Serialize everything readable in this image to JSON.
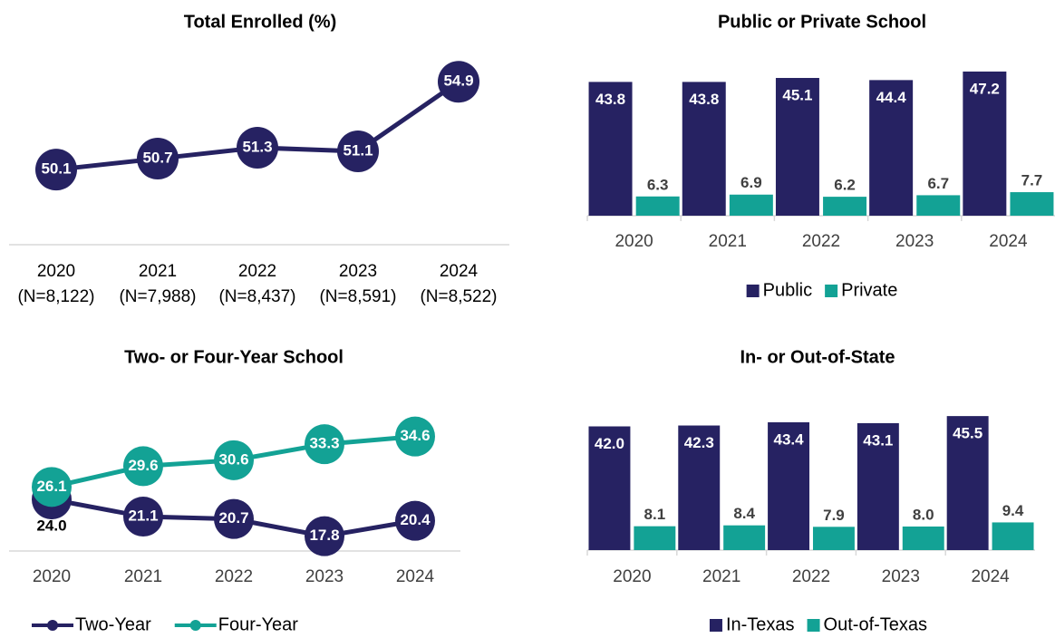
{
  "chart_data": [
    {
      "type": "line",
      "title": "Total Enrolled (%)",
      "categories": [
        "2020",
        "2021",
        "2022",
        "2023",
        "2024"
      ],
      "category_notes": [
        "(N=8,122)",
        "(N=7,988)",
        "(N=8,437)",
        "(N=8,591)",
        "(N=8,522)"
      ],
      "values": [
        50.1,
        50.7,
        51.3,
        51.1,
        54.9
      ],
      "color": "#262262",
      "ylim": [
        46,
        56
      ]
    },
    {
      "type": "bar",
      "title": "Public or Private School",
      "categories": [
        "2020",
        "2021",
        "2022",
        "2023",
        "2024"
      ],
      "series": [
        {
          "name": "Public",
          "color": "#262262",
          "values": [
            43.8,
            43.8,
            45.1,
            44.4,
            47.2
          ]
        },
        {
          "name": "Private",
          "color": "#13a295",
          "values": [
            6.3,
            6.9,
            6.2,
            6.7,
            7.7
          ]
        }
      ],
      "ylim": [
        0,
        50
      ],
      "legend": "bottom"
    },
    {
      "type": "line",
      "title": "Two- or Four-Year School",
      "categories": [
        "2020",
        "2021",
        "2022",
        "2023",
        "2024"
      ],
      "series": [
        {
          "name": "Two-Year",
          "color": "#262262",
          "values": [
            24.0,
            21.1,
            20.7,
            17.8,
            20.4
          ],
          "value_labels": [
            "24.0",
            "21.1",
            "20.7",
            "17.8",
            "20.4"
          ]
        },
        {
          "name": "Four-Year",
          "color": "#13a295",
          "values": [
            26.1,
            29.6,
            30.6,
            33.3,
            34.6
          ]
        }
      ],
      "ylim": [
        15,
        36
      ],
      "legend": "bottom"
    },
    {
      "type": "bar",
      "title": "In- or Out-of-State",
      "categories": [
        "2020",
        "2021",
        "2022",
        "2023",
        "2024"
      ],
      "series": [
        {
          "name": "In-Texas",
          "color": "#262262",
          "values": [
            42.0,
            42.3,
            43.4,
            43.1,
            45.5
          ],
          "value_labels": [
            "42.0",
            "42.3",
            "43.4",
            "43.1",
            "45.5"
          ]
        },
        {
          "name": "Out-of-Texas",
          "color": "#13a295",
          "values": [
            8.1,
            8.4,
            7.9,
            8.0,
            9.4
          ],
          "value_labels": [
            "8.1",
            "8.4",
            "7.9",
            "8.0",
            "9.4"
          ]
        }
      ],
      "ylim": [
        0,
        50
      ],
      "legend": "bottom"
    }
  ]
}
